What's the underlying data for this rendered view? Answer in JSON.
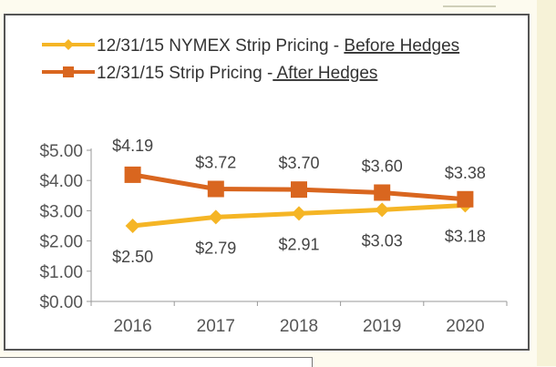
{
  "chart_data": {
    "type": "line",
    "categories": [
      "2016",
      "2017",
      "2018",
      "2019",
      "2020"
    ],
    "series": [
      {
        "name": "12/31/15 NYMEX Strip Pricing - Before Hedges",
        "name_prefix": "12/31/15 NYMEX Strip Pricing - ",
        "name_underlined": "Before Hedges",
        "values": [
          2.5,
          2.79,
          2.91,
          3.03,
          3.18
        ],
        "labels": [
          "$2.50",
          "$2.79",
          "$2.91",
          "$3.03",
          "$3.18"
        ],
        "color": "#f5b525",
        "marker": "diamond"
      },
      {
        "name": "12/31/15 Strip Pricing - After Hedges",
        "name_prefix": "12/31/15 Strip Pricing -",
        "name_underlined": " After Hedges",
        "values": [
          4.19,
          3.72,
          3.7,
          3.6,
          3.38
        ],
        "labels": [
          "$4.19",
          "$3.72",
          "$3.70",
          "$3.60",
          "$3.38"
        ],
        "color": "#d9661f",
        "marker": "square"
      }
    ],
    "yticks": [
      "$0.00",
      "$1.00",
      "$2.00",
      "$3.00",
      "$4.00",
      "$5.00"
    ],
    "ylim": [
      0,
      5
    ],
    "grid": false,
    "legend": "top"
  }
}
